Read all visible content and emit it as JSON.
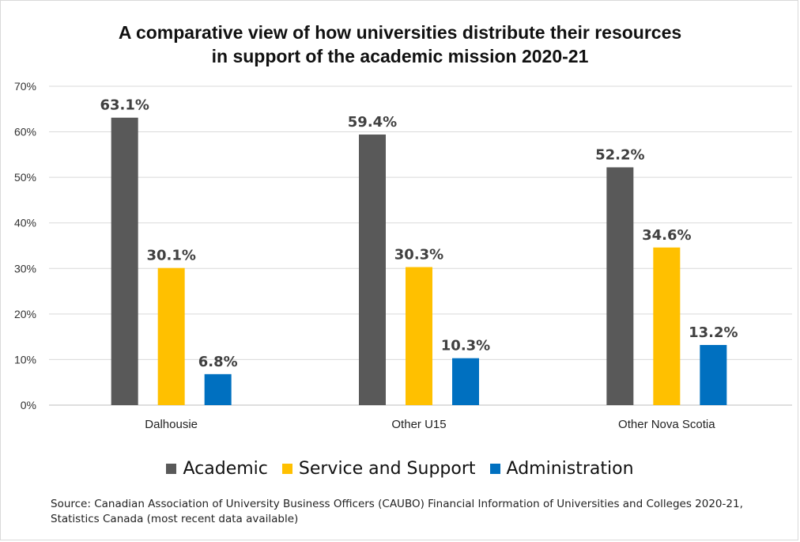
{
  "chart_data": {
    "type": "bar",
    "title_lines": [
      "A comparative view of how universities distribute their resources",
      "in support of the academic mission 2020-21"
    ],
    "categories": [
      "Dalhousie",
      "Other  U15",
      "Other Nova Scotia"
    ],
    "series": [
      {
        "name": "Academic",
        "color": "#595959",
        "values": [
          63.1,
          59.4,
          52.2
        ],
        "labels": [
          "63.1%",
          "59.4%",
          "52.2%"
        ]
      },
      {
        "name": "Service and Support",
        "color": "#FFC000",
        "values": [
          30.1,
          30.3,
          34.6
        ],
        "labels": [
          "30.1%",
          "30.3%",
          "34.6%"
        ]
      },
      {
        "name": "Administration",
        "color": "#0070C0",
        "values": [
          6.8,
          10.3,
          13.2
        ],
        "labels": [
          "6.8%",
          "10.3%",
          "13.2%"
        ]
      }
    ],
    "yticks": [
      "0%",
      "10%",
      "20%",
      "30%",
      "40%",
      "50%",
      "60%",
      "70%"
    ],
    "ylim": [
      0,
      70
    ],
    "grid": true,
    "legend_position": "bottom",
    "source": "Source: Canadian Association of University Business Officers (CAUBO) Financial Information of Universities and Colleges 2020-21, Statistics Canada (most recent data available)"
  }
}
